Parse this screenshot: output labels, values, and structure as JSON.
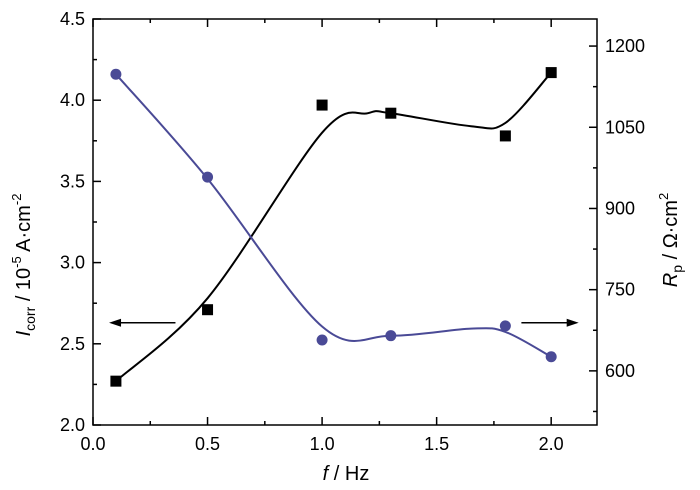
{
  "chart_data": {
    "type": "scatter",
    "title": "",
    "xlabel": {
      "symbol": "f",
      "rest": " / Hz"
    },
    "ylabel_left": {
      "symbol": "I",
      "sub": "corr",
      "rest": " / 10",
      "exp": "-5",
      "unit": " A·cm",
      "unit_exp": "-2"
    },
    "ylabel_right": {
      "symbol": "R",
      "sub": "p",
      "rest": " / Ω·cm",
      "exp": "2"
    },
    "xlim": [
      0.0,
      2.2
    ],
    "ylim_left": [
      2.0,
      4.5
    ],
    "ylim_right": [
      500,
      1250
    ],
    "x_ticks": [
      "0.0",
      "0.5",
      "1.0",
      "1.5",
      "2.0"
    ],
    "y_left_ticks": [
      "2.0",
      "2.5",
      "3.0",
      "3.5",
      "4.0",
      "4.5"
    ],
    "y_right_ticks": [
      "600",
      "750",
      "900",
      "1050",
      "1200"
    ],
    "series": [
      {
        "name": "Icorr",
        "axis": "left",
        "marker": "square",
        "color": "#000000",
        "x": [
          0.1,
          0.5,
          1.0,
          1.3,
          1.8,
          2.0
        ],
        "y": [
          2.27,
          2.71,
          3.97,
          3.92,
          3.78,
          4.17
        ],
        "fit_x": [
          0.1,
          0.5,
          1.0,
          1.2,
          1.3,
          1.65,
          1.8,
          2.0
        ],
        "fit_y": [
          2.27,
          2.78,
          3.8,
          3.92,
          3.92,
          3.84,
          3.86,
          4.17
        ]
      },
      {
        "name": "Rp",
        "axis": "right",
        "marker": "circle",
        "color": "#4a4a96",
        "x": [
          0.1,
          0.5,
          1.0,
          1.3,
          1.8,
          2.0
        ],
        "y": [
          1148,
          958,
          657,
          665,
          683,
          626
        ],
        "fit_x": [
          0.1,
          0.5,
          1.0,
          1.3,
          1.65,
          1.8,
          2.0
        ],
        "fit_y": [
          1148,
          955,
          682,
          665,
          678,
          672,
          626
        ]
      }
    ],
    "annotations": [
      {
        "label": "arrow-left",
        "direction": "left",
        "target_axis": "left",
        "x_from": 0.36,
        "x_to": 0.07,
        "y": 2.63
      },
      {
        "label": "arrow-right",
        "direction": "right",
        "target_axis": "right",
        "x_from": 1.87,
        "x_to": 2.12,
        "y": 2.63
      }
    ],
    "grid": false,
    "legend": "none"
  }
}
